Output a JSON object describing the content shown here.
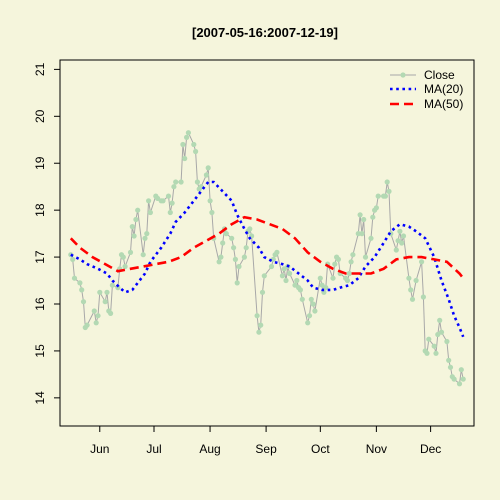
{
  "chart_data": {
    "type": "line",
    "title": "[2007-05-16:2007-12-19]",
    "xlabel": "",
    "ylabel": "",
    "x_range": [
      "2007-05-10",
      "2007-12-25"
    ],
    "ylim": [
      13.4,
      21.2
    ],
    "y_ticks": [
      14,
      15,
      16,
      17,
      18,
      19,
      20,
      21
    ],
    "x_ticks": [
      {
        "label": "Jun",
        "date": "2007-06-01"
      },
      {
        "label": "Jul",
        "date": "2007-07-01"
      },
      {
        "label": "Aug",
        "date": "2007-08-01"
      },
      {
        "label": "Sep",
        "date": "2007-09-01"
      },
      {
        "label": "Oct",
        "date": "2007-10-01"
      },
      {
        "label": "Nov",
        "date": "2007-11-01"
      },
      {
        "label": "Dec",
        "date": "2007-12-01"
      }
    ],
    "grid": false,
    "legend_position": "top-right",
    "colors": {
      "background": "#F5F5DC",
      "close": "#B3D9B3",
      "close_line": "#A8A8A8",
      "ma20": "#0000FF",
      "ma50": "#FF0000"
    },
    "series": [
      {
        "name": "Close",
        "style": "line-with-points",
        "points": [
          [
            "2007-05-16",
            17.05
          ],
          [
            "2007-05-17",
            16.95
          ],
          [
            "2007-05-18",
            16.55
          ],
          [
            "2007-05-21",
            16.45
          ],
          [
            "2007-05-22",
            16.3
          ],
          [
            "2007-05-23",
            16.05
          ],
          [
            "2007-05-24",
            15.5
          ],
          [
            "2007-05-25",
            15.55
          ],
          [
            "2007-05-29",
            15.85
          ],
          [
            "2007-05-30",
            15.6
          ],
          [
            "2007-05-31",
            15.75
          ],
          [
            "2007-06-01",
            16.25
          ],
          [
            "2007-06-04",
            16.05
          ],
          [
            "2007-06-05",
            16.25
          ],
          [
            "2007-06-06",
            15.85
          ],
          [
            "2007-06-07",
            15.8
          ],
          [
            "2007-06-08",
            16.4
          ],
          [
            "2007-06-11",
            16.35
          ],
          [
            "2007-06-12",
            16.75
          ],
          [
            "2007-06-13",
            17.05
          ],
          [
            "2007-06-14",
            17.0
          ],
          [
            "2007-06-15",
            16.8
          ],
          [
            "2007-06-18",
            17.1
          ],
          [
            "2007-06-19",
            17.65
          ],
          [
            "2007-06-20",
            17.45
          ],
          [
            "2007-06-21",
            17.8
          ],
          [
            "2007-06-22",
            18.0
          ],
          [
            "2007-06-25",
            17.05
          ],
          [
            "2007-06-26",
            17.4
          ],
          [
            "2007-06-27",
            17.5
          ],
          [
            "2007-06-28",
            18.2
          ],
          [
            "2007-06-29",
            17.95
          ],
          [
            "2007-07-02",
            18.3
          ],
          [
            "2007-07-03",
            18.25
          ],
          [
            "2007-07-05",
            18.2
          ],
          [
            "2007-07-06",
            18.2
          ],
          [
            "2007-07-09",
            18.3
          ],
          [
            "2007-07-10",
            17.95
          ],
          [
            "2007-07-11",
            18.15
          ],
          [
            "2007-07-12",
            18.5
          ],
          [
            "2007-07-13",
            18.6
          ],
          [
            "2007-07-16",
            18.6
          ],
          [
            "2007-07-17",
            19.4
          ],
          [
            "2007-07-18",
            19.1
          ],
          [
            "2007-07-19",
            19.55
          ],
          [
            "2007-07-20",
            19.65
          ],
          [
            "2007-07-23",
            19.4
          ],
          [
            "2007-07-24",
            19.25
          ],
          [
            "2007-07-25",
            18.6
          ],
          [
            "2007-07-26",
            18.45
          ],
          [
            "2007-07-27",
            18.5
          ],
          [
            "2007-07-30",
            18.75
          ],
          [
            "2007-07-31",
            18.9
          ],
          [
            "2007-08-01",
            18.2
          ],
          [
            "2007-08-02",
            17.95
          ],
          [
            "2007-08-03",
            17.4
          ],
          [
            "2007-08-06",
            16.9
          ],
          [
            "2007-08-07",
            17.0
          ],
          [
            "2007-08-08",
            17.3
          ],
          [
            "2007-08-09",
            17.6
          ],
          [
            "2007-08-10",
            17.5
          ],
          [
            "2007-08-13",
            17.4
          ],
          [
            "2007-08-14",
            17.2
          ],
          [
            "2007-08-15",
            16.95
          ],
          [
            "2007-08-16",
            16.45
          ],
          [
            "2007-08-17",
            16.8
          ],
          [
            "2007-08-20",
            17.0
          ],
          [
            "2007-08-21",
            17.2
          ],
          [
            "2007-08-22",
            17.55
          ],
          [
            "2007-08-23",
            17.6
          ],
          [
            "2007-08-24",
            17.45
          ],
          [
            "2007-08-27",
            15.75
          ],
          [
            "2007-08-28",
            15.4
          ],
          [
            "2007-08-29",
            15.55
          ],
          [
            "2007-08-30",
            16.25
          ],
          [
            "2007-08-31",
            16.6
          ],
          [
            "2007-09-04",
            16.8
          ],
          [
            "2007-09-05",
            16.95
          ],
          [
            "2007-09-06",
            17.05
          ],
          [
            "2007-09-07",
            17.1
          ],
          [
            "2007-09-10",
            16.6
          ],
          [
            "2007-09-11",
            16.75
          ],
          [
            "2007-09-12",
            16.5
          ],
          [
            "2007-09-13",
            16.8
          ],
          [
            "2007-09-14",
            16.65
          ],
          [
            "2007-09-17",
            16.4
          ],
          [
            "2007-09-18",
            16.5
          ],
          [
            "2007-09-19",
            16.35
          ],
          [
            "2007-09-20",
            16.3
          ],
          [
            "2007-09-21",
            16.1
          ],
          [
            "2007-09-24",
            15.6
          ],
          [
            "2007-09-25",
            15.75
          ],
          [
            "2007-09-26",
            16.1
          ],
          [
            "2007-09-27",
            16.0
          ],
          [
            "2007-09-28",
            15.85
          ],
          [
            "2007-10-01",
            16.55
          ],
          [
            "2007-10-02",
            16.4
          ],
          [
            "2007-10-03",
            16.25
          ],
          [
            "2007-10-04",
            16.35
          ],
          [
            "2007-10-05",
            16.85
          ],
          [
            "2007-10-08",
            16.55
          ],
          [
            "2007-10-09",
            16.85
          ],
          [
            "2007-10-10",
            17.0
          ],
          [
            "2007-10-11",
            16.95
          ],
          [
            "2007-10-12",
            16.65
          ],
          [
            "2007-10-15",
            16.55
          ],
          [
            "2007-10-16",
            16.5
          ],
          [
            "2007-10-17",
            16.65
          ],
          [
            "2007-10-18",
            16.9
          ],
          [
            "2007-10-19",
            17.05
          ],
          [
            "2007-10-22",
            17.5
          ],
          [
            "2007-10-23",
            17.9
          ],
          [
            "2007-10-24",
            17.5
          ],
          [
            "2007-10-25",
            17.8
          ],
          [
            "2007-10-26",
            17.0
          ],
          [
            "2007-10-29",
            17.4
          ],
          [
            "2007-10-30",
            17.85
          ],
          [
            "2007-10-31",
            18.0
          ],
          [
            "2007-11-01",
            18.05
          ],
          [
            "2007-11-02",
            18.3
          ],
          [
            "2007-11-05",
            18.3
          ],
          [
            "2007-11-06",
            18.3
          ],
          [
            "2007-11-07",
            18.6
          ],
          [
            "2007-11-08",
            18.4
          ],
          [
            "2007-11-09",
            17.5
          ],
          [
            "2007-11-12",
            17.15
          ],
          [
            "2007-11-13",
            17.35
          ],
          [
            "2007-11-14",
            17.55
          ],
          [
            "2007-11-15",
            17.3
          ],
          [
            "2007-11-16",
            17.45
          ],
          [
            "2007-11-19",
            16.55
          ],
          [
            "2007-11-20",
            16.3
          ],
          [
            "2007-11-21",
            16.1
          ],
          [
            "2007-11-23",
            16.5
          ],
          [
            "2007-11-26",
            16.9
          ],
          [
            "2007-11-27",
            16.15
          ],
          [
            "2007-11-28",
            15.0
          ],
          [
            "2007-11-29",
            14.95
          ],
          [
            "2007-11-30",
            15.25
          ],
          [
            "2007-12-03",
            15.1
          ],
          [
            "2007-12-04",
            14.95
          ],
          [
            "2007-12-05",
            15.35
          ],
          [
            "2007-12-06",
            15.65
          ],
          [
            "2007-12-07",
            15.4
          ],
          [
            "2007-12-10",
            15.2
          ],
          [
            "2007-12-11",
            14.8
          ],
          [
            "2007-12-12",
            14.65
          ],
          [
            "2007-12-13",
            14.45
          ],
          [
            "2007-12-14",
            14.4
          ],
          [
            "2007-12-17",
            14.3
          ],
          [
            "2007-12-18",
            14.6
          ],
          [
            "2007-12-19",
            14.4
          ]
        ]
      },
      {
        "name": "MA(20)",
        "style": "dotted",
        "points": [
          [
            "2007-05-16",
            17.05
          ],
          [
            "2007-05-21",
            16.95
          ],
          [
            "2007-05-25",
            16.85
          ],
          [
            "2007-05-31",
            16.75
          ],
          [
            "2007-06-05",
            16.65
          ],
          [
            "2007-06-08",
            16.5
          ],
          [
            "2007-06-12",
            16.35
          ],
          [
            "2007-06-15",
            16.25
          ],
          [
            "2007-06-19",
            16.3
          ],
          [
            "2007-06-22",
            16.45
          ],
          [
            "2007-06-26",
            16.65
          ],
          [
            "2007-06-29",
            16.9
          ],
          [
            "2007-07-05",
            17.2
          ],
          [
            "2007-07-10",
            17.5
          ],
          [
            "2007-07-13",
            17.75
          ],
          [
            "2007-07-18",
            17.95
          ],
          [
            "2007-07-23",
            18.2
          ],
          [
            "2007-07-27",
            18.4
          ],
          [
            "2007-07-31",
            18.6
          ],
          [
            "2007-08-03",
            18.6
          ],
          [
            "2007-08-08",
            18.4
          ],
          [
            "2007-08-13",
            18.2
          ],
          [
            "2007-08-16",
            17.9
          ],
          [
            "2007-08-20",
            17.6
          ],
          [
            "2007-08-23",
            17.4
          ],
          [
            "2007-08-28",
            17.2
          ],
          [
            "2007-08-31",
            17.0
          ],
          [
            "2007-09-05",
            16.9
          ],
          [
            "2007-09-10",
            16.85
          ],
          [
            "2007-09-14",
            16.8
          ],
          [
            "2007-09-19",
            16.65
          ],
          [
            "2007-09-24",
            16.5
          ],
          [
            "2007-09-27",
            16.35
          ],
          [
            "2007-10-02",
            16.3
          ],
          [
            "2007-10-08",
            16.3
          ],
          [
            "2007-10-12",
            16.35
          ],
          [
            "2007-10-17",
            16.4
          ],
          [
            "2007-10-22",
            16.55
          ],
          [
            "2007-10-26",
            16.8
          ],
          [
            "2007-10-31",
            17.0
          ],
          [
            "2007-11-05",
            17.3
          ],
          [
            "2007-11-09",
            17.55
          ],
          [
            "2007-11-14",
            17.7
          ],
          [
            "2007-11-19",
            17.65
          ],
          [
            "2007-11-23",
            17.55
          ],
          [
            "2007-11-28",
            17.4
          ],
          [
            "2007-12-03",
            17.0
          ],
          [
            "2007-12-07",
            16.5
          ],
          [
            "2007-12-11",
            16.1
          ],
          [
            "2007-12-14",
            15.75
          ],
          [
            "2007-12-17",
            15.5
          ],
          [
            "2007-12-19",
            15.3
          ]
        ]
      },
      {
        "name": "MA(50)",
        "style": "dashed",
        "points": [
          [
            "2007-05-16",
            17.4
          ],
          [
            "2007-05-21",
            17.2
          ],
          [
            "2007-05-28",
            17.0
          ],
          [
            "2007-06-04",
            16.85
          ],
          [
            "2007-06-11",
            16.7
          ],
          [
            "2007-06-18",
            16.75
          ],
          [
            "2007-06-25",
            16.8
          ],
          [
            "2007-07-02",
            16.85
          ],
          [
            "2007-07-09",
            16.9
          ],
          [
            "2007-07-16",
            17.0
          ],
          [
            "2007-07-23",
            17.2
          ],
          [
            "2007-07-30",
            17.35
          ],
          [
            "2007-08-06",
            17.5
          ],
          [
            "2007-08-13",
            17.7
          ],
          [
            "2007-08-20",
            17.85
          ],
          [
            "2007-08-27",
            17.8
          ],
          [
            "2007-09-03",
            17.7
          ],
          [
            "2007-09-10",
            17.6
          ],
          [
            "2007-09-17",
            17.4
          ],
          [
            "2007-09-24",
            17.1
          ],
          [
            "2007-10-01",
            16.9
          ],
          [
            "2007-10-08",
            16.75
          ],
          [
            "2007-10-15",
            16.65
          ],
          [
            "2007-10-22",
            16.65
          ],
          [
            "2007-10-29",
            16.65
          ],
          [
            "2007-11-05",
            16.75
          ],
          [
            "2007-11-12",
            16.95
          ],
          [
            "2007-11-19",
            17.0
          ],
          [
            "2007-11-26",
            17.0
          ],
          [
            "2007-12-03",
            16.95
          ],
          [
            "2007-12-10",
            16.9
          ],
          [
            "2007-12-17",
            16.65
          ],
          [
            "2007-12-19",
            16.55
          ]
        ]
      }
    ]
  }
}
